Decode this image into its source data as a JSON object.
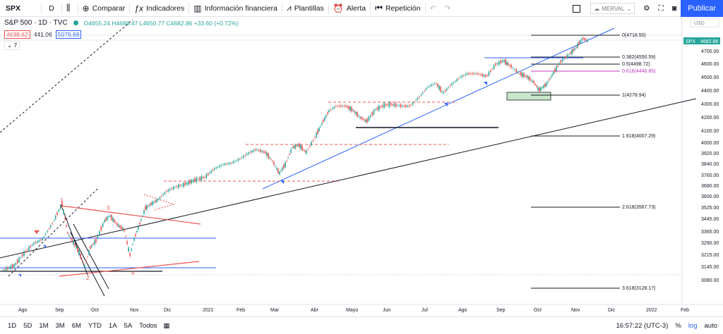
{
  "toolbar": {
    "symbol": "SPX",
    "interval": "D",
    "compare": "Comparar",
    "indicators": "Indicadores",
    "financial": "Información financiera",
    "templates": "Plantillas",
    "alert": "Alerta",
    "replay": "Repetición",
    "merval": "MERVAL",
    "publish": "Publicar"
  },
  "legend": {
    "title": "S&P 500 · 1D · TVC",
    "ohlc": "O4655.24 H4688.47 L4650.77 C4682.86 +33.60 (+0.72%)",
    "bid": "4638.62",
    "spread": "441.06",
    "ask": "5079.68",
    "collapse": "7"
  },
  "price_axis": {
    "currency": "USD",
    "ticks": [
      "4700.00",
      "4600.00",
      "4500.00",
      "4400.00",
      "4300.00",
      "4200.00",
      "4100.00",
      "4000.00",
      "3920.00",
      "3840.00",
      "3760.00",
      "3680.00",
      "3600.00",
      "3525.00",
      "3445.00",
      "3365.00",
      "3290.00",
      "3215.00",
      "3145.00",
      "3080.00"
    ],
    "symbol_tag": "SPX",
    "last_price": "4682.86"
  },
  "time_axis": [
    "Ago",
    "Sep",
    "Oct",
    "Nov",
    "Dic",
    "2021",
    "Feb",
    "Mar",
    "Abr",
    "Mayo",
    "Jun",
    "Jul",
    "Ago",
    "Sep",
    "Oct",
    "Nov",
    "Dic",
    "2022",
    "Feb"
  ],
  "fib_levels": [
    "0(4718.50)",
    "0.382(4550.59)",
    "0.5(4498.72)",
    "0.618(4446.85)",
    "1(4278.94)",
    "1.618(4007.29)",
    "2.618(3567.73)",
    "3.618(3128.17)"
  ],
  "wave_labels": [
    "1",
    "2",
    "3",
    "4"
  ],
  "colors": {
    "up": "#26a69a",
    "down": "#ef5350",
    "accent": "#2962ff",
    "fib_highlight": "#c039c0"
  },
  "bottom": {
    "timeframes": [
      "1D",
      "5D",
      "1M",
      "3M",
      "6M",
      "YTD",
      "1A",
      "5A",
      "Todos"
    ],
    "clock": "16:57:22 (UTC-3)",
    "percent": "%",
    "log": "log",
    "auto": "auto"
  }
}
